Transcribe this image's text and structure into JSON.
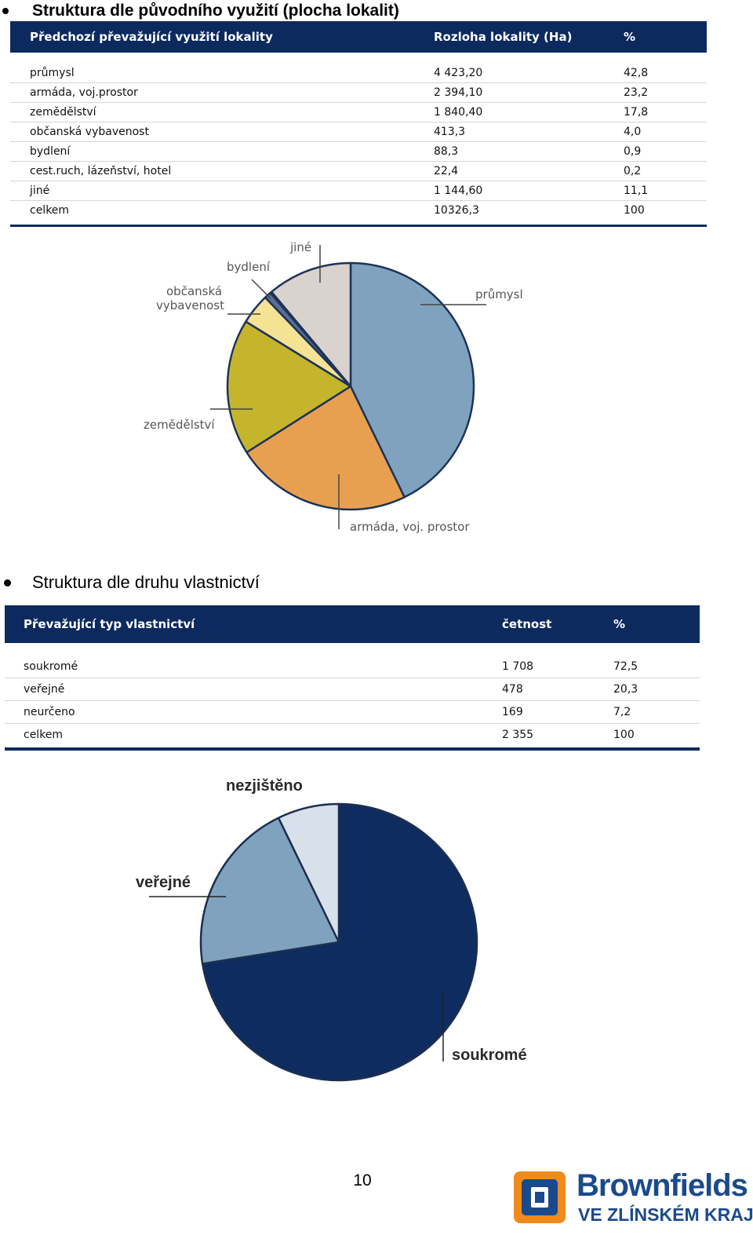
{
  "section1": {
    "heading": "Struktura dle původního využití (plocha lokalit)",
    "table": {
      "headers": [
        "Předchozí převažující využití lokality",
        "Rozloha lokality (Ha)",
        "%"
      ],
      "rows": [
        [
          "průmysl",
          "4 423,20",
          "42,8"
        ],
        [
          "armáda, voj.prostor",
          "2 394,10",
          "23,2"
        ],
        [
          "zemědělství",
          "1 840,40",
          "17,8"
        ],
        [
          "občanská vybavenost",
          "413,3",
          "4,0"
        ],
        [
          "bydlení",
          "88,3",
          "0,9"
        ],
        [
          "cest.ruch, lázeňství, hotel",
          "22,4",
          "0,2"
        ],
        [
          "jiné",
          "1 144,60",
          "11,1"
        ],
        [
          "celkem",
          "10326,3",
          "100"
        ]
      ]
    },
    "pie_labels": {
      "prumysl": "průmysl",
      "armada": "armáda, voj. prostor",
      "zemedelstvi": "zemědělství",
      "obcanska_1": "občanská",
      "obcanska_2": "vybavenost",
      "bydleni": "bydlení",
      "jine": "jiné"
    }
  },
  "section2": {
    "heading": "Struktura dle druhu vlastnictví",
    "table": {
      "headers": [
        "Převažující typ vlastnictví",
        "četnost",
        "%"
      ],
      "rows": [
        [
          "soukromé",
          "1 708",
          "72,5"
        ],
        [
          "veřejné",
          "478",
          "20,3"
        ],
        [
          "neurčeno",
          "169",
          "7,2"
        ],
        [
          "celkem",
          "2 355",
          "100"
        ]
      ]
    },
    "pie_labels": {
      "nezjisteno": "nezjištěno",
      "verejne": "veřejné",
      "soukrome": "soukromé"
    }
  },
  "chart_data": [
    {
      "type": "pie",
      "categories": [
        "průmysl",
        "armáda, voj. prostor",
        "zemědělství",
        "občanská vybavenost",
        "bydlení",
        "cest.ruch, lázeňství, hotel",
        "jiné"
      ],
      "values": [
        42.8,
        23.2,
        17.8,
        4.0,
        0.9,
        0.2,
        11.1
      ],
      "colors": [
        "#7fa3bf",
        "#e8a050",
        "#c4b52c",
        "#f5e394",
        "#5a6d94",
        "#3a4d7a",
        "#d9d2cd"
      ],
      "edge_color": "#1d3358"
    },
    {
      "type": "pie",
      "categories": [
        "soukromé",
        "veřejné",
        "nezjištěno"
      ],
      "values": [
        72.5,
        20.3,
        7.2
      ],
      "colors": [
        "#0e2c5f",
        "#7fa3bf",
        "#d8e0ea"
      ],
      "edge_color": "#1d2f50"
    }
  ],
  "page_number": "10",
  "logo": {
    "line1": "Brownfields",
    "line2": "VE ZLÍNSKÉM KRAJI",
    "blue": "#1b4a8c",
    "orange": "#f08a1c"
  }
}
